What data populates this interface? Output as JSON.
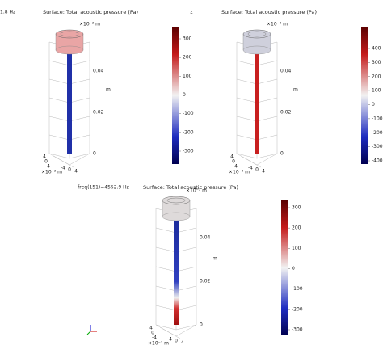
{
  "top_label": "z",
  "panels": [
    {
      "header": "1.8 Hz",
      "title": "Surface: Total acoustic pressure (Pa)",
      "scale_label": "×10⁻³ m",
      "z_unit": "m",
      "z_ticks": [
        "0.04",
        "0.02",
        "0"
      ],
      "base_ticks": [
        "4",
        "0",
        "-4",
        "-4",
        "0",
        "4"
      ],
      "base_scale": "×10⁻³ m",
      "colorbar_ticks": [
        300,
        200,
        100,
        0,
        -100,
        -200,
        -300
      ]
    },
    {
      "title": "Surface: Total acoustic pressure (Pa)",
      "scale_label": "×10⁻³ m",
      "z_unit": "m",
      "z_ticks": [
        "0.04",
        "0.02",
        "0"
      ],
      "base_ticks": [
        "4",
        "0",
        "-4",
        "-4",
        "0",
        "4"
      ],
      "base_scale": "×10⁻³ m",
      "colorbar_ticks": [
        400,
        300,
        200,
        100,
        0,
        -100,
        -200,
        -300,
        -400
      ]
    },
    {
      "header": "freq(151)=4552.9 Hz",
      "title": "Surface: Total acoustic pressure (Pa)",
      "scale_label": "×10⁻³ m",
      "z_unit": "m",
      "z_ticks": [
        "0.04",
        "0.02",
        "0"
      ],
      "base_ticks": [
        "4",
        "0",
        "-4",
        "-4",
        "0",
        "4"
      ],
      "base_scale": "×10⁻³ m",
      "colorbar_ticks": [
        300,
        200,
        100,
        0,
        -100,
        -200,
        -300
      ]
    }
  ]
}
